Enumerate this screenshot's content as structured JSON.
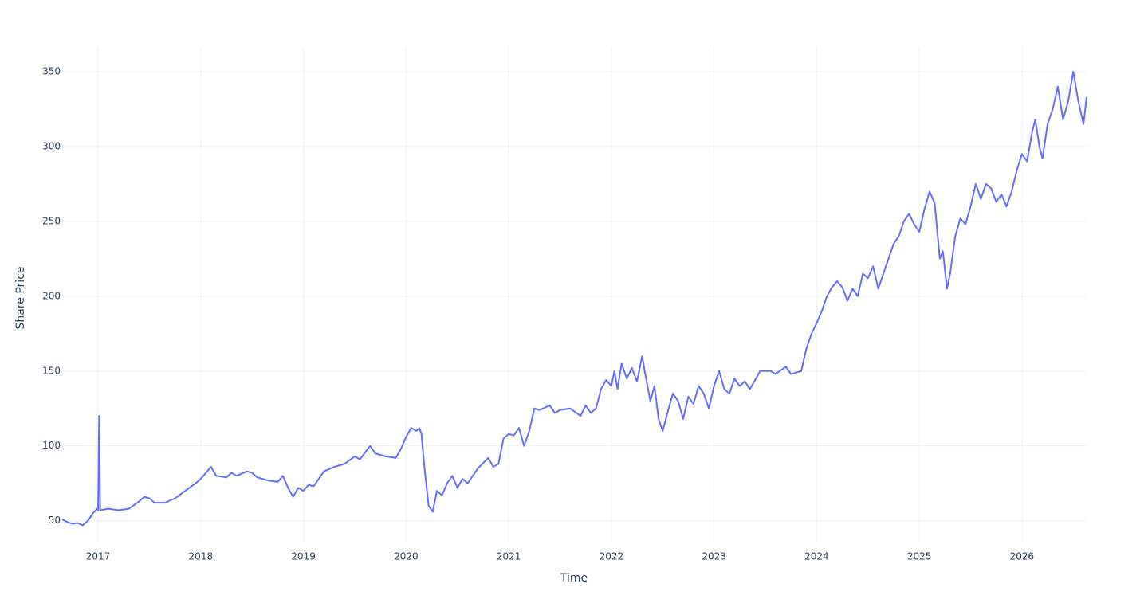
{
  "chart_data": {
    "type": "line",
    "xlabel": "Time",
    "ylabel": "Share Price",
    "x": [
      2016.65,
      2016.7,
      2016.75,
      2016.8,
      2016.85,
      2016.9,
      2016.95,
      2016.99,
      2017.0,
      2017.01,
      2017.02,
      2017.1,
      2017.2,
      2017.3,
      2017.4,
      2017.45,
      2017.5,
      2017.55,
      2017.65,
      2017.75,
      2017.85,
      2017.95,
      2018.0,
      2018.05,
      2018.1,
      2018.15,
      2018.25,
      2018.3,
      2018.35,
      2018.45,
      2018.5,
      2018.55,
      2018.65,
      2018.75,
      2018.8,
      2018.85,
      2018.9,
      2018.95,
      2019.0,
      2019.05,
      2019.1,
      2019.2,
      2019.3,
      2019.4,
      2019.5,
      2019.55,
      2019.65,
      2019.7,
      2019.8,
      2019.9,
      2019.95,
      2020.0,
      2020.05,
      2020.1,
      2020.13,
      2020.15,
      2020.18,
      2020.22,
      2020.26,
      2020.3,
      2020.35,
      2020.4,
      2020.45,
      2020.5,
      2020.55,
      2020.6,
      2020.7,
      2020.8,
      2020.85,
      2020.9,
      2020.95,
      2021.0,
      2021.05,
      2021.1,
      2021.15,
      2021.2,
      2021.25,
      2021.3,
      2021.4,
      2021.45,
      2021.5,
      2021.6,
      2021.7,
      2021.75,
      2021.8,
      2021.85,
      2021.9,
      2021.95,
      2022.0,
      2022.03,
      2022.06,
      2022.1,
      2022.15,
      2022.2,
      2022.25,
      2022.3,
      2022.33,
      2022.38,
      2022.42,
      2022.46,
      2022.5,
      2022.55,
      2022.6,
      2022.65,
      2022.7,
      2022.75,
      2022.8,
      2022.85,
      2022.9,
      2022.95,
      2023.0,
      2023.05,
      2023.1,
      2023.15,
      2023.2,
      2023.25,
      2023.3,
      2023.35,
      2023.45,
      2023.55,
      2023.6,
      2023.7,
      2023.75,
      2023.85,
      2023.9,
      2023.95,
      2024.0,
      2024.05,
      2024.1,
      2024.15,
      2024.2,
      2024.25,
      2024.3,
      2024.35,
      2024.4,
      2024.45,
      2024.5,
      2024.55,
      2024.6,
      2024.65,
      2024.7,
      2024.75,
      2024.8,
      2024.85,
      2024.9,
      2024.95,
      2025.0,
      2025.05,
      2025.1,
      2025.15,
      2025.2,
      2025.23,
      2025.27,
      2025.3,
      2025.35,
      2025.4,
      2025.45,
      2025.5,
      2025.55,
      2025.6,
      2025.65,
      2025.7,
      2025.75,
      2025.8,
      2025.85,
      2025.9,
      2025.95,
      2026.0,
      2026.05,
      2026.1,
      2026.13,
      2026.17,
      2026.2,
      2026.25,
      2026.3,
      2026.35,
      2026.4,
      2026.45,
      2026.5,
      2026.55,
      2026.6,
      2026.63
    ],
    "values": [
      51,
      49,
      48,
      48.5,
      47,
      50,
      55,
      58,
      57,
      120,
      57,
      58,
      57,
      58,
      63,
      66,
      65,
      62,
      62,
      65,
      70,
      75,
      78,
      82,
      86,
      80,
      79,
      82,
      80,
      83,
      82,
      79,
      77,
      76,
      80,
      72,
      66,
      72,
      70,
      74,
      73,
      83,
      86,
      88,
      93,
      91,
      100,
      95,
      93,
      92,
      98,
      106,
      112,
      110,
      112,
      108,
      85,
      60,
      56,
      70,
      67,
      75,
      80,
      72,
      78,
      75,
      85,
      92,
      86,
      88,
      105,
      108,
      107,
      112,
      100,
      110,
      125,
      124,
      127,
      122,
      124,
      125,
      120,
      127,
      122,
      125,
      138,
      144,
      140,
      150,
      138,
      155,
      145,
      152,
      143,
      160,
      148,
      130,
      140,
      118,
      110,
      123,
      135,
      130,
      118,
      133,
      128,
      140,
      135,
      125,
      140,
      150,
      138,
      135,
      145,
      140,
      143,
      138,
      150,
      150,
      148,
      153,
      148,
      150,
      165,
      175,
      182,
      190,
      200,
      206,
      210,
      206,
      197,
      205,
      200,
      215,
      212,
      220,
      205,
      215,
      225,
      235,
      240,
      250,
      255,
      248,
      243,
      258,
      270,
      262,
      225,
      230,
      205,
      215,
      240,
      252,
      248,
      260,
      275,
      265,
      275,
      272,
      263,
      268,
      260,
      270,
      284,
      295,
      290,
      310,
      318,
      300,
      292,
      315,
      325,
      340,
      318,
      330,
      350,
      330,
      315,
      333
    ],
    "color": "#636efa",
    "xlim": [
      2016.65,
      2026.63
    ],
    "xticks": [
      2017,
      2018,
      2019,
      2020,
      2021,
      2022,
      2023,
      2024,
      2025,
      2026
    ],
    "ylim": [
      36,
      367
    ],
    "yticks": [
      50,
      100,
      150,
      200,
      250,
      300,
      350
    ],
    "grid": true
  }
}
